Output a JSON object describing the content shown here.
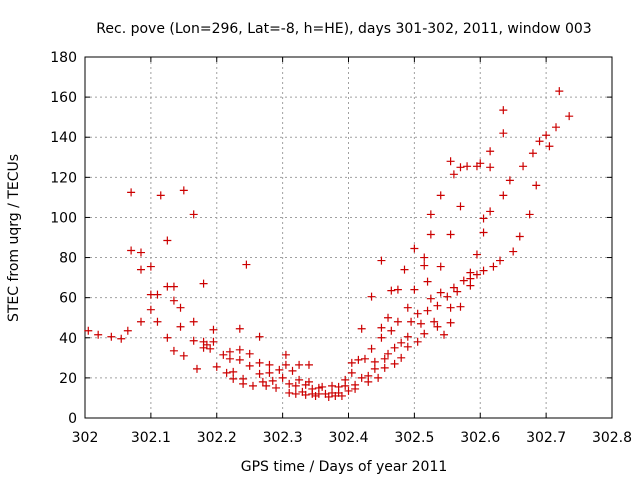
{
  "chart_data": {
    "type": "scatter",
    "title": "Rec. pove (Lon=296, Lat=-8, h=HE), days 301-302, 2011, window 003",
    "xlabel": "GPS time / Days of year 2011",
    "ylabel": "STEC from uqrg / TECUs",
    "xlim": [
      302,
      302.8
    ],
    "ylim": [
      0,
      180
    ],
    "xticks": [
      302,
      302.1,
      302.2,
      302.3,
      302.4,
      302.5,
      302.6,
      302.7,
      302.8
    ],
    "xtick_labels": [
      "302",
      "302.1",
      "302.2",
      "302.3",
      "302.4",
      "302.5",
      "302.6",
      "302.7",
      "302.8"
    ],
    "yticks": [
      0,
      20,
      40,
      60,
      80,
      100,
      120,
      140,
      160,
      180
    ],
    "ytick_labels": [
      "0",
      "20",
      "40",
      "60",
      "80",
      "100",
      "120",
      "140",
      "160",
      "180"
    ],
    "grid": true,
    "marker": "+",
    "color": "#cc0000",
    "series": [
      {
        "name": "STEC",
        "points": [
          [
            302.005,
            43.5
          ],
          [
            302.02,
            41.5
          ],
          [
            302.04,
            40.5
          ],
          [
            302.055,
            39.5
          ],
          [
            302.065,
            43.5
          ],
          [
            302.07,
            83.5
          ],
          [
            302.085,
            82.5
          ],
          [
            302.085,
            74
          ],
          [
            302.085,
            48
          ],
          [
            302.07,
            112.5
          ],
          [
            302.1,
            75.5
          ],
          [
            302.1,
            61.5
          ],
          [
            302.1,
            54
          ],
          [
            302.11,
            61.5
          ],
          [
            302.11,
            48
          ],
          [
            302.115,
            111
          ],
          [
            302.125,
            88.5
          ],
          [
            302.125,
            65.5
          ],
          [
            302.125,
            40
          ],
          [
            302.135,
            65.5
          ],
          [
            302.135,
            58.5
          ],
          [
            302.135,
            33.5
          ],
          [
            302.145,
            55
          ],
          [
            302.145,
            45.5
          ],
          [
            302.15,
            113.5
          ],
          [
            302.15,
            31
          ],
          [
            302.165,
            101.5
          ],
          [
            302.165,
            48
          ],
          [
            302.165,
            38.5
          ],
          [
            302.17,
            24.5
          ],
          [
            302.18,
            67
          ],
          [
            302.18,
            38
          ],
          [
            302.18,
            35
          ],
          [
            302.185,
            36.5
          ],
          [
            302.19,
            34.5
          ],
          [
            302.195,
            44
          ],
          [
            302.195,
            38
          ],
          [
            302.2,
            25.5
          ],
          [
            302.21,
            31.5
          ],
          [
            302.215,
            22.5
          ],
          [
            302.22,
            33
          ],
          [
            302.22,
            29.5
          ],
          [
            302.225,
            23
          ],
          [
            302.225,
            19.5
          ],
          [
            302.235,
            44.5
          ],
          [
            302.235,
            34
          ],
          [
            302.235,
            29
          ],
          [
            302.24,
            19.5
          ],
          [
            302.24,
            17
          ],
          [
            302.245,
            76.5
          ],
          [
            302.25,
            32
          ],
          [
            302.25,
            26
          ],
          [
            302.255,
            16
          ],
          [
            302.265,
            40.5
          ],
          [
            302.265,
            27.5
          ],
          [
            302.265,
            22
          ],
          [
            302.27,
            18
          ],
          [
            302.275,
            16
          ],
          [
            302.28,
            26.5
          ],
          [
            302.28,
            22.5
          ],
          [
            302.285,
            18.5
          ],
          [
            302.29,
            15
          ],
          [
            302.295,
            24
          ],
          [
            302.3,
            20
          ],
          [
            302.305,
            31.5
          ],
          [
            302.305,
            26.5
          ],
          [
            302.31,
            17
          ],
          [
            302.31,
            12.5
          ],
          [
            302.315,
            23.5
          ],
          [
            302.32,
            16
          ],
          [
            302.32,
            12
          ],
          [
            302.325,
            19
          ],
          [
            302.325,
            26.5
          ],
          [
            302.33,
            13
          ],
          [
            302.335,
            16.5
          ],
          [
            302.335,
            11.5
          ],
          [
            302.34,
            26.5
          ],
          [
            302.34,
            18
          ],
          [
            302.345,
            14.5
          ],
          [
            302.345,
            12
          ],
          [
            302.35,
            11
          ],
          [
            302.355,
            15
          ],
          [
            302.355,
            12
          ],
          [
            302.36,
            15.5
          ],
          [
            302.365,
            12
          ],
          [
            302.37,
            10.5
          ],
          [
            302.375,
            16
          ],
          [
            302.375,
            12.5
          ],
          [
            302.38,
            11
          ],
          [
            302.385,
            15.5
          ],
          [
            302.385,
            12.5
          ],
          [
            302.39,
            11
          ],
          [
            302.395,
            19
          ],
          [
            302.395,
            16
          ],
          [
            302.4,
            13.5
          ],
          [
            302.405,
            27.5
          ],
          [
            302.405,
            22.5
          ],
          [
            302.41,
            16.5
          ],
          [
            302.41,
            14.5
          ],
          [
            302.415,
            29
          ],
          [
            302.42,
            44.5
          ],
          [
            302.42,
            20
          ],
          [
            302.425,
            29.5
          ],
          [
            302.43,
            18
          ],
          [
            302.43,
            21
          ],
          [
            302.435,
            60.5
          ],
          [
            302.435,
            34.5
          ],
          [
            302.44,
            24.5
          ],
          [
            302.44,
            28
          ],
          [
            302.445,
            20
          ],
          [
            302.45,
            78.5
          ],
          [
            302.45,
            45
          ],
          [
            302.45,
            40
          ],
          [
            302.455,
            29.5
          ],
          [
            302.455,
            25
          ],
          [
            302.46,
            50
          ],
          [
            302.46,
            32
          ],
          [
            302.465,
            63.5
          ],
          [
            302.465,
            43.5
          ],
          [
            302.47,
            35
          ],
          [
            302.47,
            27
          ],
          [
            302.475,
            64
          ],
          [
            302.475,
            48
          ],
          [
            302.48,
            37.5
          ],
          [
            302.48,
            30
          ],
          [
            302.485,
            74
          ],
          [
            302.49,
            55
          ],
          [
            302.49,
            40.5
          ],
          [
            302.49,
            35.5
          ],
          [
            302.495,
            48
          ],
          [
            302.5,
            84.5
          ],
          [
            302.5,
            64
          ],
          [
            302.505,
            52
          ],
          [
            302.505,
            38
          ],
          [
            302.51,
            47
          ],
          [
            302.515,
            80
          ],
          [
            302.515,
            76
          ],
          [
            302.515,
            42
          ],
          [
            302.52,
            68
          ],
          [
            302.52,
            53.5
          ],
          [
            302.525,
            101.5
          ],
          [
            302.525,
            91.5
          ],
          [
            302.525,
            59.5
          ],
          [
            302.53,
            48
          ],
          [
            302.535,
            56
          ],
          [
            302.535,
            45.5
          ],
          [
            302.54,
            111
          ],
          [
            302.54,
            75.5
          ],
          [
            302.54,
            62.5
          ],
          [
            302.545,
            41.5
          ],
          [
            302.55,
            60.5
          ],
          [
            302.555,
            128
          ],
          [
            302.555,
            91.5
          ],
          [
            302.555,
            55
          ],
          [
            302.555,
            47.5
          ],
          [
            302.56,
            121.5
          ],
          [
            302.56,
            65
          ],
          [
            302.565,
            63
          ],
          [
            302.57,
            125
          ],
          [
            302.57,
            105.5
          ],
          [
            302.57,
            55.5
          ],
          [
            302.575,
            68.5
          ],
          [
            302.58,
            125.5
          ],
          [
            302.585,
            72.5
          ],
          [
            302.585,
            69.5
          ],
          [
            302.585,
            66
          ],
          [
            302.595,
            125.5
          ],
          [
            302.595,
            81.5
          ],
          [
            302.595,
            71.5
          ],
          [
            302.6,
            127
          ],
          [
            302.605,
            99.5
          ],
          [
            302.605,
            92.5
          ],
          [
            302.605,
            73.5
          ],
          [
            302.615,
            133
          ],
          [
            302.615,
            125
          ],
          [
            302.615,
            103
          ],
          [
            302.62,
            75.5
          ],
          [
            302.63,
            78.5
          ],
          [
            302.635,
            153.5
          ],
          [
            302.635,
            142
          ],
          [
            302.635,
            111
          ],
          [
            302.645,
            118.5
          ],
          [
            302.65,
            83
          ],
          [
            302.66,
            90.5
          ],
          [
            302.665,
            125.5
          ],
          [
            302.675,
            101.5
          ],
          [
            302.68,
            132
          ],
          [
            302.685,
            116
          ],
          [
            302.69,
            138
          ],
          [
            302.7,
            141
          ],
          [
            302.705,
            135.5
          ],
          [
            302.715,
            145
          ],
          [
            302.72,
            163
          ],
          [
            302.735,
            150.5
          ]
        ]
      }
    ]
  }
}
